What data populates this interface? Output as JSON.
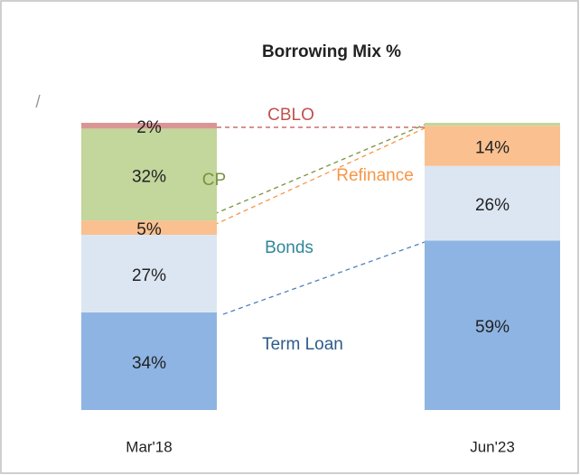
{
  "chart_data": {
    "type": "stacked_bar",
    "title": "Borrowing Mix %",
    "annotation": "/",
    "categories": [
      "Mar'18",
      "Jun'23"
    ],
    "ylim": [
      0,
      100
    ],
    "series": [
      {
        "name": "Term Loan",
        "color": "#8eb4e3",
        "label_color": "#2e5b8a",
        "values": [
          34,
          59
        ],
        "value_labels": [
          "34%",
          "59%"
        ]
      },
      {
        "name": "Bonds",
        "color": "#dce6f2",
        "label_color": "#31869b",
        "values": [
          27,
          26
        ],
        "value_labels": [
          "27%",
          "26%"
        ]
      },
      {
        "name": "Refinance",
        "color": "#fac090",
        "label_color": "#f79646",
        "values": [
          5,
          14
        ],
        "value_labels": [
          "5%",
          "14%"
        ]
      },
      {
        "name": "CP",
        "color": "#c3d69b",
        "label_color": "#77933c",
        "values": [
          32,
          1
        ],
        "value_labels": [
          "32%",
          null
        ]
      },
      {
        "name": "CBLO",
        "color": "#da9694",
        "label_color": "#c0504d",
        "values": [
          2,
          0
        ],
        "value_labels": [
          "2%",
          null
        ]
      }
    ]
  }
}
